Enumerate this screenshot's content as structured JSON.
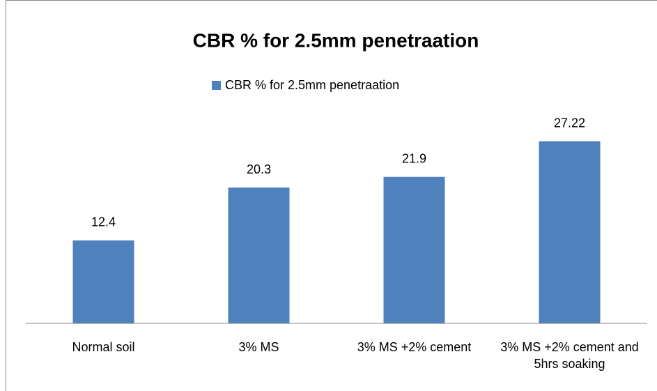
{
  "chart_data": {
    "type": "bar",
    "title": "CBR % for 2.5mm penetraation",
    "categories": [
      "Normal soil",
      "3% MS",
      "3% MS +2% cement",
      "3% MS +2% cement and 5hrs soaking"
    ],
    "series": [
      {
        "name": "CBR % for 2.5mm penetraation",
        "color": "#4f81bd",
        "values": [
          12.4,
          20.3,
          21.9,
          27.22
        ]
      }
    ],
    "ylim": [
      0,
      30
    ],
    "legend": "top"
  }
}
